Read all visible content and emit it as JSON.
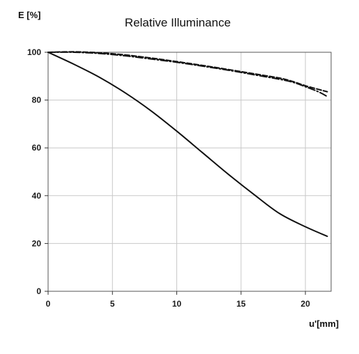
{
  "chart_data": {
    "type": "line",
    "title": "Relative  Illuminance",
    "xlabel": "u'[mm]",
    "ylabel": "E [%]",
    "xlim": [
      0,
      22
    ],
    "ylim": [
      0,
      100
    ],
    "x_ticks": [
      0,
      5,
      10,
      15,
      20
    ],
    "y_ticks": [
      0,
      20,
      40,
      60,
      80,
      100
    ],
    "grid": true,
    "legend": "none",
    "line_color": "#111111",
    "grid_color": "#c8c8c8",
    "series": [
      {
        "style": "solid",
        "x": [
          0,
          2,
          4,
          6,
          8,
          10,
          12,
          14,
          16,
          18,
          20,
          21.7
        ],
        "y": [
          100,
          95,
          89.5,
          83,
          75.5,
          67,
          58,
          49,
          40.5,
          32.5,
          27,
          23
        ]
      },
      {
        "style": "dashed",
        "x": [
          0,
          2,
          4,
          6,
          8,
          10,
          12,
          14,
          16,
          18,
          19,
          20,
          21,
          21.7
        ],
        "y": [
          100,
          100.2,
          99.8,
          98.9,
          97.6,
          96.1,
          94.5,
          92.8,
          91,
          89.2,
          87.8,
          86,
          84.5,
          83.5
        ]
      },
      {
        "style": "dash-dot",
        "x": [
          0,
          2,
          4,
          6,
          8,
          10,
          12,
          14,
          16,
          18,
          19,
          20,
          21,
          21.7
        ],
        "y": [
          100,
          100,
          99.5,
          98.5,
          97.2,
          95.8,
          94.2,
          92.5,
          90.6,
          88.7,
          87.5,
          85.6,
          83.5,
          81.5
        ]
      }
    ]
  }
}
